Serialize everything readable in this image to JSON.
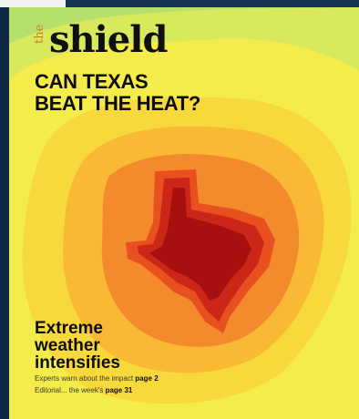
{
  "masthead": {
    "prefix": "the",
    "title": "shield"
  },
  "headline": {
    "line1": "CAN TEXAS",
    "line2": "BEAT THE HEAT?"
  },
  "story": {
    "title_line1": "Extreme",
    "title_line2": "weather",
    "title_line3": "intensifies",
    "teaser1": {
      "text": "Experts warn about the impact",
      "page": "page 2"
    },
    "teaser2": {
      "text": "Editorial... the week's",
      "page": "page 31"
    }
  },
  "colors": {
    "background": "#0f2a45",
    "heat_outer": "#9fd86a",
    "heat_yellow": "#f2ec4a",
    "heat_core": "#a80f0f",
    "masthead_prefix": "#c9871f"
  }
}
